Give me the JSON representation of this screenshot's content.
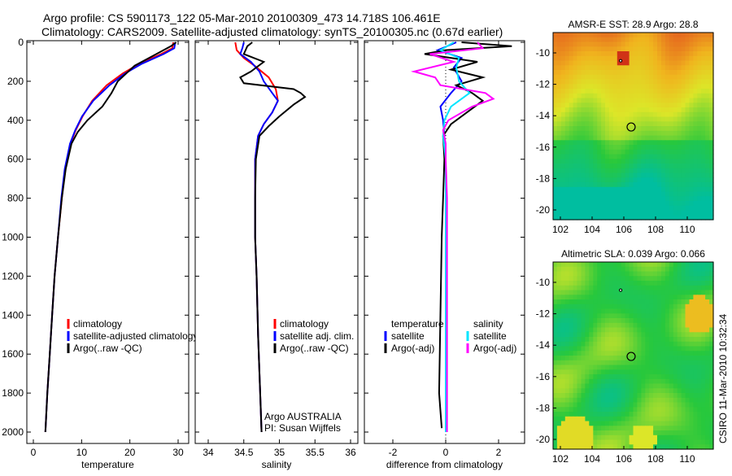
{
  "title_line1": "Argo profile: CS 5901173_122 05-Mar-2010 20100309_473 14.718S 106.461E",
  "title_line2": "Climatology: CARS2009. Satellite-adjusted climatology: synTS_20100305.nc (0.67d earlier)",
  "side_stamp": "CSIRO 11-Mar-2010 10:32:34",
  "colors": {
    "climatology": "#ff0000",
    "satellite": "#0000ff",
    "argo": "#000000",
    "salinity_sat": "#00e5ff",
    "salinity_argo": "#ff00ff"
  },
  "chart_data": [
    {
      "type": "line",
      "id": "temperature",
      "xlabel": "temperature",
      "ylabel": "",
      "xlim": [
        -2,
        32
      ],
      "ylim": [
        2050,
        0
      ],
      "xticks": [
        0,
        10,
        20,
        30
      ],
      "yticks": [
        0,
        200,
        400,
        600,
        800,
        1000,
        1200,
        1400,
        1600,
        1800,
        2000
      ],
      "legend": [
        "climatology",
        "satellite-adjusted climatology",
        "Argo(..raw -QC)"
      ],
      "legend_position": "bottom-right",
      "series": [
        {
          "name": "climatology",
          "color": "#ff0000",
          "depth": [
            0,
            30,
            60,
            110,
            160,
            220,
            300,
            380,
            450,
            520,
            650,
            800,
            1000,
            1200,
            1400,
            1600,
            1800,
            2000
          ],
          "value": [
            29,
            28.8,
            26.5,
            22,
            18.5,
            15.2,
            12.2,
            10.2,
            8.8,
            7.7,
            6.6,
            5.9,
            5.1,
            4.4,
            3.9,
            3.4,
            2.9,
            2.5
          ]
        },
        {
          "name": "satellite-adjusted climatology",
          "color": "#0000ff",
          "depth": [
            0,
            30,
            60,
            110,
            160,
            220,
            300,
            380,
            450,
            520,
            650,
            800,
            1000,
            1200,
            1400,
            1600,
            1800,
            2000
          ],
          "value": [
            29.4,
            29.2,
            27,
            22.5,
            19,
            15.8,
            12.4,
            10.1,
            8.7,
            7.6,
            6.5,
            5.8,
            5.1,
            4.4,
            3.9,
            3.4,
            2.9,
            2.5
          ]
        },
        {
          "name": "Argo(..raw -QC)",
          "color": "#000000",
          "depth": [
            0,
            20,
            60,
            120,
            200,
            260,
            330,
            400,
            460,
            520,
            650,
            800,
            1000,
            1200,
            1400,
            1600,
            1800,
            2000
          ],
          "value": [
            29.6,
            28.5,
            25.5,
            21,
            17.5,
            16.2,
            14.3,
            11.2,
            9.2,
            7.9,
            6.7,
            5.9,
            5.1,
            4.4,
            3.9,
            3.4,
            2.9,
            2.5
          ]
        }
      ]
    },
    {
      "type": "line",
      "id": "salinity",
      "xlabel": "salinity",
      "xlim": [
        33.8,
        36
      ],
      "ylim": [
        2050,
        0
      ],
      "xticks": [
        34,
        34.5,
        35,
        35.5,
        36
      ],
      "yticks": [
        0,
        200,
        400,
        600,
        800,
        1000,
        1200,
        1400,
        1600,
        1800,
        2000
      ],
      "legend": [
        "climatology",
        "satellite adj. clim.",
        "Argo(..raw -QC)"
      ],
      "legend_position": "bottom-right",
      "annotation": [
        "Argo AUSTRALIA",
        "PI: Susan Wijffels"
      ],
      "series": [
        {
          "name": "climatology",
          "color": "#ff0000",
          "depth": [
            0,
            40,
            80,
            120,
            180,
            240,
            300,
            360,
            420,
            480,
            600,
            800,
            1000,
            1200,
            1500,
            1800,
            2000
          ],
          "value": [
            34.38,
            34.4,
            34.5,
            34.65,
            34.85,
            34.95,
            34.98,
            34.9,
            34.78,
            34.7,
            34.66,
            34.66,
            34.66,
            34.68,
            34.7,
            34.73,
            34.75
          ]
        },
        {
          "name": "satellite adj. clim.",
          "color": "#0000ff",
          "depth": [
            0,
            30,
            60,
            100,
            150,
            200,
            260,
            300,
            360,
            420,
            480,
            600,
            800,
            1000,
            1200,
            1500,
            1800,
            2000
          ],
          "value": [
            34.5,
            34.48,
            34.45,
            34.6,
            34.72,
            34.78,
            34.9,
            34.98,
            34.9,
            34.78,
            34.7,
            34.66,
            34.66,
            34.66,
            34.68,
            34.7,
            34.73,
            34.75
          ]
        },
        {
          "name": "Argo(..raw -QC)",
          "color": "#000000",
          "depth": [
            0,
            20,
            60,
            100,
            150,
            180,
            210,
            240,
            260,
            280,
            320,
            380,
            430,
            480,
            600,
            800,
            1000,
            1200,
            1500,
            1800,
            2000
          ],
          "value": [
            34.62,
            34.55,
            34.5,
            34.78,
            34.6,
            34.45,
            34.5,
            35.2,
            35.3,
            35.36,
            35.2,
            35.0,
            34.85,
            34.72,
            34.67,
            34.66,
            34.66,
            34.68,
            34.7,
            34.73,
            34.75
          ]
        }
      ]
    },
    {
      "type": "line",
      "id": "difference",
      "xlabel": "difference from climatology",
      "xlim": [
        -3,
        3
      ],
      "ylim": [
        2050,
        0
      ],
      "xticks": [
        -2,
        0,
        2
      ],
      "yticks": [
        0,
        200,
        400,
        600,
        800,
        1000,
        1200,
        1400,
        1600,
        1800,
        2000
      ],
      "legend_groups": [
        {
          "title": "temperature",
          "items": [
            "satellite",
            "Argo(-adj)"
          ]
        },
        {
          "title": "salinity",
          "items": [
            "satellite",
            "Argo(-adj)"
          ]
        }
      ],
      "series": [
        {
          "name": "temperature satellite",
          "color": "#0000ff",
          "depth": [
            0,
            40,
            80,
            130,
            200,
            260,
            330,
            400,
            480,
            600,
            800,
            1000,
            1500,
            2000
          ],
          "value": [
            0.4,
            -0.3,
            0.6,
            0.3,
            0.6,
            0.2,
            -0.2,
            -0.1,
            -0.05,
            0,
            0,
            0,
            0,
            0
          ]
        },
        {
          "name": "temperature Argo(-adj)",
          "color": "#000000",
          "depth": [
            0,
            20,
            40,
            60,
            100,
            140,
            180,
            220,
            260,
            300,
            360,
            420,
            480,
            600,
            800,
            1000,
            1400,
            1800,
            1980
          ],
          "value": [
            0.6,
            2.5,
            0,
            -0.8,
            1.2,
            0.2,
            1.4,
            0.4,
            1.0,
            1.4,
            0.8,
            0.2,
            -0.1,
            -0.05,
            -0.1,
            -0.15,
            -0.2,
            -0.25,
            -0.15
          ]
        },
        {
          "name": "salinity satellite",
          "color": "#00e5ff",
          "depth": [
            0,
            40,
            80,
            130,
            200,
            260,
            330,
            400,
            480,
            600,
            800,
            1000,
            1500,
            2000
          ],
          "value": [
            0.3,
            -0.2,
            0.5,
            0.4,
            0.5,
            0.9,
            0.2,
            -0.05,
            -0.1,
            0,
            0,
            0,
            0,
            0
          ]
        },
        {
          "name": "salinity Argo(-adj)",
          "color": "#ff00ff",
          "depth": [
            0,
            30,
            60,
            100,
            150,
            180,
            220,
            260,
            290,
            330,
            400,
            450,
            520,
            600,
            800,
            1000,
            1500,
            2000
          ],
          "value": [
            1.2,
            1.4,
            -0.6,
            0.3,
            -1.2,
            -0.4,
            -0.2,
            1.5,
            1.8,
            1.0,
            0.1,
            -0.1,
            0,
            0,
            0.05,
            0.05,
            0.05,
            0.05
          ]
        }
      ]
    },
    {
      "type": "heatmap",
      "id": "sst-map",
      "title": "AMSR-E SST: 28.9 Argo: 28.8",
      "xlim": [
        101,
        112
      ],
      "ylim": [
        -20.7,
        -8.6
      ],
      "xticks": [
        102,
        104,
        106,
        108,
        110
      ],
      "yticks": [
        -10,
        -12,
        -14,
        -16,
        -18,
        -20
      ],
      "argo_position": [
        106.461,
        -14.718
      ],
      "previous_position": [
        105.8,
        -10.5
      ]
    },
    {
      "type": "heatmap",
      "id": "sla-map",
      "title": "Altimetric SLA: 0.039 Argo: 0.066",
      "xlim": [
        101,
        112
      ],
      "ylim": [
        -20.7,
        -8.6
      ],
      "xticks": [
        102,
        104,
        106,
        108,
        110
      ],
      "yticks": [
        -10,
        -12,
        -14,
        -16,
        -18,
        -20
      ],
      "argo_position": [
        106.461,
        -14.718
      ],
      "previous_position": [
        105.8,
        -10.5
      ]
    }
  ]
}
